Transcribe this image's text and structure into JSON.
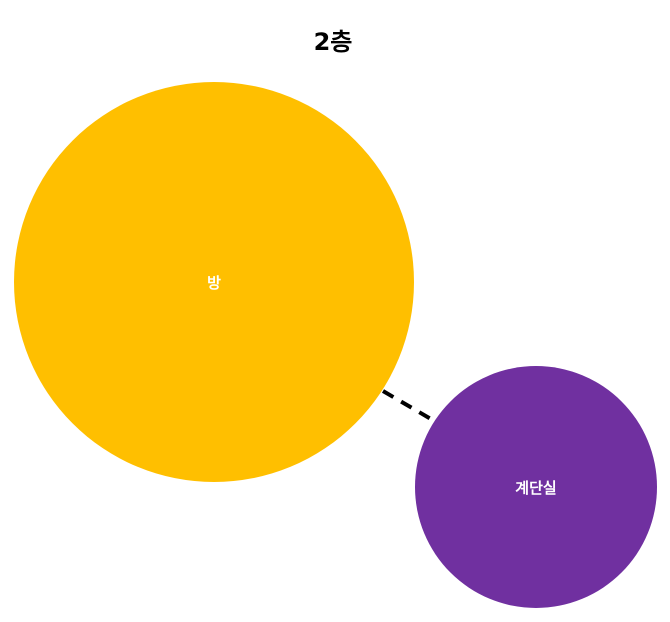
{
  "title": "2층",
  "nodes": [
    {
      "id": "room",
      "label": "방",
      "color": "#FFBF00"
    },
    {
      "id": "stairwell",
      "label": "계단실",
      "color": "#7030A0"
    }
  ],
  "edges": [
    {
      "from": "room",
      "to": "stairwell",
      "style": "dashed",
      "color": "#000000"
    }
  ]
}
